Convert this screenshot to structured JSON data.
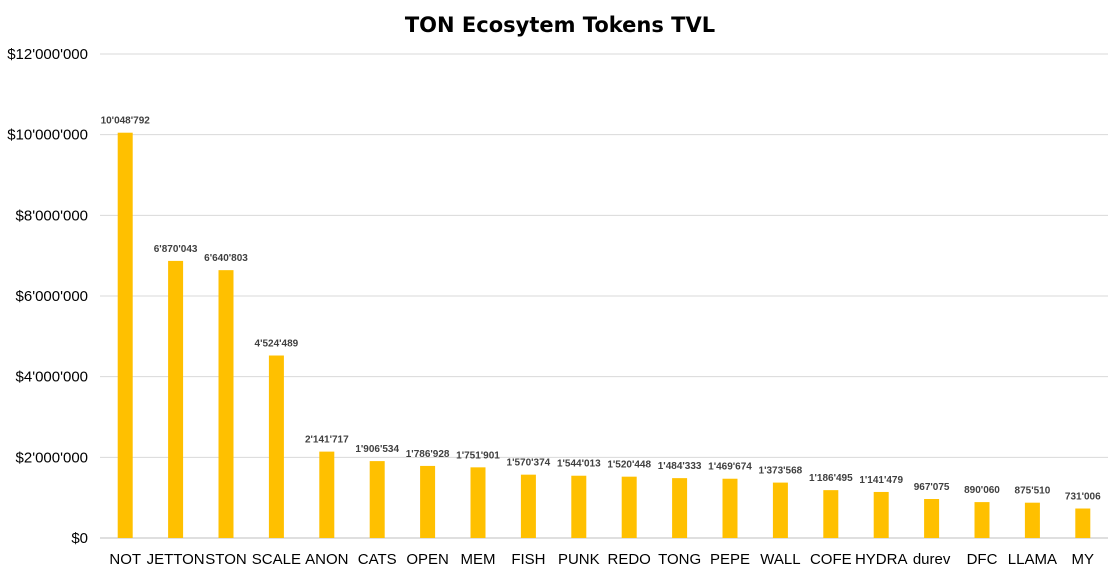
{
  "chart_data": {
    "type": "bar",
    "title": "TON Ecosytem Tokens TVL",
    "xlabel": "",
    "ylabel": "",
    "ylim": [
      0,
      12000000
    ],
    "yticks": [
      {
        "value": 0,
        "label": "$0"
      },
      {
        "value": 2000000,
        "label": "$2'000'000"
      },
      {
        "value": 4000000,
        "label": "$4'000'000"
      },
      {
        "value": 6000000,
        "label": "$6'000'000"
      },
      {
        "value": 8000000,
        "label": "$8'000'000"
      },
      {
        "value": 10000000,
        "label": "$10'000'000"
      },
      {
        "value": 12000000,
        "label": "$12'000'000"
      }
    ],
    "grid": true,
    "bar_color": "#FFC000",
    "categories": [
      "NOT",
      "JETTON",
      "STON",
      "SCALE",
      "ANON",
      "CATS",
      "OPEN",
      "MEM",
      "FISH",
      "PUNK",
      "REDO",
      "TONG",
      "PEPE",
      "WALL",
      "COFE",
      "HYDRA",
      "durev",
      "DFC",
      "LLAMA",
      "MY"
    ],
    "values": [
      10048792,
      6870043,
      6640803,
      4524489,
      2141717,
      1906534,
      1786928,
      1751901,
      1570374,
      1544013,
      1520448,
      1484333,
      1469674,
      1373568,
      1186495,
      1141479,
      967075,
      890060,
      875510,
      731006
    ],
    "value_labels": [
      "10'048'792",
      "6'870'043",
      "6'640'803",
      "4'524'489",
      "2'141'717",
      "1'906'534",
      "1'786'928",
      "1'751'901",
      "1'570'374",
      "1'544'013",
      "1'520'448",
      "1'484'333",
      "1'469'674",
      "1'373'568",
      "1'186'495",
      "1'141'479",
      "967'075",
      "890'060",
      "875'510",
      "731'006"
    ]
  }
}
